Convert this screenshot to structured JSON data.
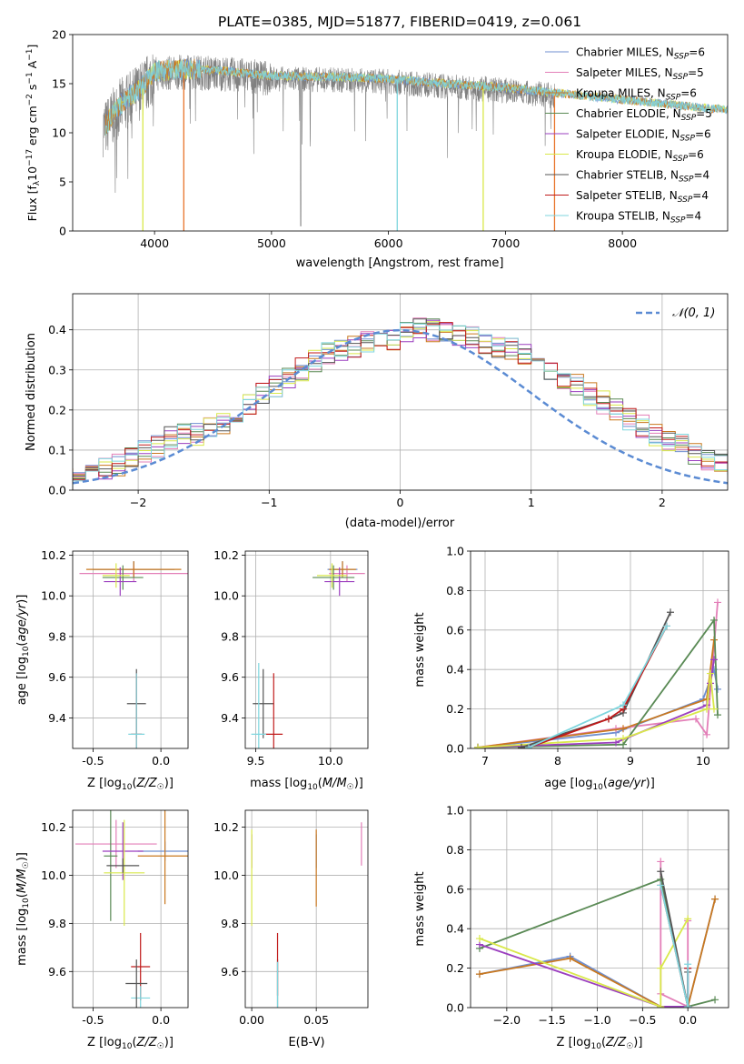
{
  "figure_title": "PLATE=0385, MJD=51877, FIBERID=0419, z=0.061",
  "colors": {
    "Chabrier MILES": "#6f8fd0",
    "Salpeter MILES": "#e37fb8",
    "Kroupa MILES": "#c9781f",
    "Chabrier ELODIE": "#5a8a55",
    "Salpeter ELODIE": "#9b3fbf",
    "Kroupa ELODIE": "#d9e84a",
    "Chabrier STELIB": "#555555",
    "Salpeter STELIB": "#c01a1a",
    "Kroupa STELIB": "#7fd6de",
    "data": "#808080",
    "orange": "#e8742a"
  },
  "chart_data": [
    {
      "type": "line",
      "name": "spectrum",
      "xlabel": "wavelength [Angstrom, rest frame]",
      "ylabel": "Flux [f_λ 10^-17 erg cm^-2 s^-1 A^-1]",
      "xlim": [
        3300,
        8900
      ],
      "ylim": [
        0,
        20
      ],
      "xticks": [
        4000,
        5000,
        6000,
        7000,
        8000
      ],
      "yticks": [
        0,
        5,
        10,
        15,
        20
      ],
      "legend": [
        {
          "name": "Chabrier MILES",
          "nssp": "6"
        },
        {
          "name": "Salpeter MILES",
          "nssp": "5"
        },
        {
          "name": "Kroupa MILES",
          "nssp": "6"
        },
        {
          "name": "Chabrier ELODIE",
          "nssp": "5"
        },
        {
          "name": "Salpeter ELODIE",
          "nssp": "6"
        },
        {
          "name": "Kroupa ELODIE",
          "nssp": "6"
        },
        {
          "name": "Chabrier STELIB",
          "nssp": "4"
        },
        {
          "name": "Salpeter STELIB",
          "nssp": "4"
        },
        {
          "name": "Kroupa STELIB",
          "nssp": "4"
        }
      ],
      "legend_position": "top-right",
      "continuum": [
        [
          3580,
          10.5
        ],
        [
          3700,
          12.5
        ],
        [
          3900,
          14.5
        ],
        [
          4000,
          16.0
        ],
        [
          4300,
          16.2
        ],
        [
          4600,
          16.0
        ],
        [
          5000,
          15.5
        ],
        [
          5500,
          15.4
        ],
        [
          6000,
          15.2
        ],
        [
          6500,
          14.7
        ],
        [
          7000,
          14.3
        ],
        [
          7400,
          13.8
        ]
      ],
      "data_range": [
        3560,
        7420
      ],
      "model_range": [
        3580,
        9200
      ]
    },
    {
      "type": "bar",
      "name": "residual-histogram",
      "xlabel": "(data-model)/error",
      "ylabel": "Normed distribution",
      "xlim": [
        -2.5,
        2.5
      ],
      "ylim": [
        0,
        0.49
      ],
      "xticks": [
        -2,
        -1,
        0,
        1,
        2
      ],
      "yticks": [
        0.0,
        0.1,
        0.2,
        0.3,
        0.4
      ],
      "bin_width": 0.1,
      "gaussian_label": "𝒩(0, 1)",
      "legend_position": "top-right",
      "base_values": [
        0.03,
        0.03,
        0.04,
        0.04,
        0.05,
        0.06,
        0.08,
        0.1,
        0.11,
        0.13,
        0.14,
        0.14,
        0.16,
        0.17,
        0.19,
        0.21,
        0.24,
        0.26,
        0.28,
        0.3,
        0.32,
        0.34,
        0.35,
        0.36,
        0.37,
        0.38,
        0.38,
        0.39,
        0.4,
        0.4,
        0.4,
        0.39,
        0.38,
        0.37,
        0.36,
        0.35,
        0.34,
        0.32,
        0.3,
        0.28,
        0.26,
        0.24,
        0.22,
        0.2,
        0.18,
        0.16,
        0.14,
        0.12,
        0.11,
        0.09,
        0.08,
        0.07,
        0.06,
        0.05
      ]
    },
    {
      "type": "scatter",
      "name": "age-vs-metallicity",
      "xlabel": "Z [log₁₀(Z/Z☉)]",
      "ylabel": "age  [log₁₀(age/yr)]",
      "xlim": [
        -0.65,
        0.2
      ],
      "ylim": [
        9.25,
        10.22
      ],
      "xticks": [
        -0.5,
        0.0
      ],
      "yticks": [
        9.4,
        9.6,
        9.8,
        10.0,
        10.2
      ],
      "points": [
        {
          "series": "Chabrier MILES",
          "x": -0.2,
          "y": 10.13,
          "xerr": 0.3,
          "yerr": 0.04
        },
        {
          "series": "Salpeter MILES",
          "x": -0.2,
          "y": 10.11,
          "xerr": 0.4,
          "yerr": 0.04
        },
        {
          "series": "Kroupa MILES",
          "x": -0.2,
          "y": 10.13,
          "xerr": 0.35,
          "yerr": 0.04
        },
        {
          "series": "Chabrier ELODIE",
          "x": -0.28,
          "y": 10.09,
          "xerr": 0.15,
          "yerr": 0.06
        },
        {
          "series": "Salpeter ELODIE",
          "x": -0.3,
          "y": 10.07,
          "xerr": 0.12,
          "yerr": 0.07
        },
        {
          "series": "Kroupa ELODIE",
          "x": -0.33,
          "y": 10.1,
          "xerr": 0.1,
          "yerr": 0.06
        },
        {
          "series": "Chabrier STELIB",
          "x": -0.18,
          "y": 9.47,
          "xerr": 0.07,
          "yerr": 0.17
        },
        {
          "series": "Salpeter STELIB",
          "x": -0.18,
          "y": 9.32,
          "xerr": 0.04,
          "yerr": 0.3
        },
        {
          "series": "Kroupa STELIB",
          "x": -0.18,
          "y": 9.32,
          "xerr": 0.06,
          "yerr": 0.3
        }
      ]
    },
    {
      "type": "scatter",
      "name": "age-vs-mass",
      "xlabel": "mass [log₁₀(M/M☉)]",
      "ylabel": "",
      "xlim": [
        9.43,
        10.25
      ],
      "ylim": [
        9.25,
        10.22
      ],
      "xticks": [
        9.5,
        10.0
      ],
      "yticks": [
        9.4,
        9.6,
        9.8,
        10.0,
        10.2
      ],
      "points": [
        {
          "series": "Chabrier MILES",
          "x": 10.08,
          "y": 10.13,
          "xerr": 0.1,
          "yerr": 0.04
        },
        {
          "series": "Salpeter MILES",
          "x": 10.11,
          "y": 10.11,
          "xerr": 0.12,
          "yerr": 0.04
        },
        {
          "series": "Kroupa MILES",
          "x": 10.08,
          "y": 10.13,
          "xerr": 0.09,
          "yerr": 0.04
        },
        {
          "series": "Chabrier ELODIE",
          "x": 10.02,
          "y": 10.09,
          "xerr": 0.14,
          "yerr": 0.06
        },
        {
          "series": "Salpeter ELODIE",
          "x": 10.06,
          "y": 10.07,
          "xerr": 0.1,
          "yerr": 0.07
        },
        {
          "series": "Kroupa ELODIE",
          "x": 10.01,
          "y": 10.1,
          "xerr": 0.1,
          "yerr": 0.06
        },
        {
          "series": "Chabrier STELIB",
          "x": 9.55,
          "y": 9.47,
          "xerr": 0.07,
          "yerr": 0.17
        },
        {
          "series": "Salpeter STELIB",
          "x": 9.62,
          "y": 9.32,
          "xerr": 0.06,
          "yerr": 0.3
        },
        {
          "series": "Kroupa STELIB",
          "x": 9.52,
          "y": 9.32,
          "xerr": 0.05,
          "yerr": 0.35
        }
      ]
    },
    {
      "type": "line",
      "name": "mass-weight-vs-age",
      "xlabel": "age  [log₁₀(age/yr)]",
      "ylabel": "mass weight",
      "xlim": [
        6.8,
        10.35
      ],
      "ylim": [
        0,
        1
      ],
      "xticks": [
        7,
        8,
        9,
        10
      ],
      "yticks": [
        0.0,
        0.2,
        0.4,
        0.6,
        0.8,
        1.0
      ],
      "series": [
        {
          "name": "Chabrier MILES",
          "points": [
            [
              6.9,
              0.005
            ],
            [
              8.8,
              0.08
            ],
            [
              10.0,
              0.25
            ],
            [
              10.15,
              0.4
            ],
            [
              10.2,
              0.3
            ]
          ]
        },
        {
          "name": "Salpeter MILES",
          "points": [
            [
              6.9,
              0.005
            ],
            [
              8.8,
              0.1
            ],
            [
              9.9,
              0.15
            ],
            [
              10.05,
              0.07
            ],
            [
              10.2,
              0.74
            ]
          ]
        },
        {
          "name": "Kroupa MILES",
          "points": [
            [
              6.9,
              0.005
            ],
            [
              8.9,
              0.1
            ],
            [
              10.05,
              0.25
            ],
            [
              10.15,
              0.55
            ]
          ]
        },
        {
          "name": "Chabrier ELODIE",
          "points": [
            [
              6.9,
              0.005
            ],
            [
              8.9,
              0.02
            ],
            [
              10.15,
              0.65
            ],
            [
              10.2,
              0.17
            ]
          ]
        },
        {
          "name": "Salpeter ELODIE",
          "points": [
            [
              6.9,
              0.005
            ],
            [
              8.8,
              0.03
            ],
            [
              10.05,
              0.22
            ],
            [
              10.1,
              0.33
            ],
            [
              10.15,
              0.45
            ]
          ]
        },
        {
          "name": "Kroupa ELODIE",
          "points": [
            [
              6.9,
              0.005
            ],
            [
              8.9,
              0.05
            ],
            [
              10.05,
              0.2
            ],
            [
              10.1,
              0.38
            ],
            [
              10.15,
              0.2
            ]
          ]
        },
        {
          "name": "Chabrier STELIB",
          "points": [
            [
              7.5,
              0.005
            ],
            [
              8.7,
              0.15
            ],
            [
              8.9,
              0.18
            ],
            [
              9.55,
              0.69
            ]
          ]
        },
        {
          "name": "Salpeter STELIB",
          "points": [
            [
              7.6,
              0.005
            ],
            [
              8.7,
              0.15
            ],
            [
              8.9,
              0.2
            ],
            [
              9.5,
              0.62
            ]
          ]
        },
        {
          "name": "Kroupa STELIB",
          "points": [
            [
              7.6,
              0.005
            ],
            [
              8.9,
              0.22
            ],
            [
              9.5,
              0.62
            ]
          ]
        }
      ]
    },
    {
      "type": "scatter",
      "name": "mass-vs-metallicity",
      "xlabel": "Z [log₁₀(Z/Z☉)]",
      "ylabel": "mass [log₁₀(M/M☉)]",
      "xlim": [
        -0.65,
        0.2
      ],
      "ylim": [
        9.45,
        10.27
      ],
      "xticks": [
        -0.5,
        0.0
      ],
      "yticks": [
        9.6,
        9.8,
        10.0,
        10.2
      ],
      "points": [
        {
          "series": "Chabrier MILES",
          "x": 0.03,
          "y": 10.1,
          "xerr": 0.2,
          "yerr": 0.04
        },
        {
          "series": "Salpeter MILES",
          "x": -0.33,
          "y": 10.13,
          "xerr": 0.3,
          "yerr": 0.1
        },
        {
          "series": "Kroupa MILES",
          "x": 0.03,
          "y": 10.08,
          "xerr": 0.2,
          "yerr": 0.2
        },
        {
          "series": "Chabrier ELODIE",
          "x": -0.37,
          "y": 10.08,
          "xerr": 0.05,
          "yerr": 0.27
        },
        {
          "series": "Salpeter ELODIE",
          "x": -0.28,
          "y": 10.1,
          "xerr": 0.15,
          "yerr": 0.12
        },
        {
          "series": "Kroupa ELODIE",
          "x": -0.27,
          "y": 10.01,
          "xerr": 0.15,
          "yerr": 0.22
        },
        {
          "series": "Chabrier STELIB",
          "x": -0.28,
          "y": 10.04,
          "xerr": 0.12,
          "yerr": 0.03
        },
        {
          "series": "Salpeter STELIB",
          "x": -0.15,
          "y": 9.62,
          "xerr": 0.07,
          "yerr": 0.14
        },
        {
          "series": "Kroupa STELIB",
          "x": -0.15,
          "y": 9.49,
          "xerr": 0.07,
          "yerr": 0.05
        },
        {
          "series": "Chabrier STELIB",
          "x": -0.18,
          "y": 9.55,
          "xerr": 0.08,
          "yerr": 0.1
        }
      ]
    },
    {
      "type": "scatter",
      "name": "mass-vs-extinction",
      "xlabel": "E(B-V)",
      "ylabel": "",
      "xlim": [
        -0.005,
        0.09
      ],
      "ylim": [
        9.45,
        10.27
      ],
      "xticks": [
        0.0,
        0.05
      ],
      "yticks": [
        9.6,
        9.8,
        10.0,
        10.2
      ],
      "points": [
        {
          "series": "Chabrier MILES",
          "x": 0.05,
          "y": 10.1,
          "xerr": 0,
          "yerr": 0.07
        },
        {
          "series": "Salpeter MILES",
          "x": 0.085,
          "y": 10.13,
          "xerr": 0,
          "yerr": 0.09
        },
        {
          "series": "Kroupa MILES",
          "x": 0.05,
          "y": 10.03,
          "xerr": 0,
          "yerr": 0.16
        },
        {
          "series": "Salpeter ELODIE",
          "x": 0.0,
          "y": 10.1,
          "xerr": 0,
          "yerr": 0.07
        },
        {
          "series": "Kroupa ELODIE",
          "x": 0.0,
          "y": 9.99,
          "xerr": 0,
          "yerr": 0.2
        },
        {
          "series": "Chabrier STELIB",
          "x": 0.02,
          "y": 9.55,
          "xerr": 0,
          "yerr": 0.1
        },
        {
          "series": "Salpeter STELIB",
          "x": 0.02,
          "y": 9.63,
          "xerr": 0,
          "yerr": 0.13
        },
        {
          "series": "Kroupa STELIB",
          "x": 0.02,
          "y": 9.52,
          "xerr": 0,
          "yerr": 0.12
        }
      ]
    },
    {
      "type": "line",
      "name": "mass-weight-vs-metallicity",
      "xlabel": "Z [log₁₀(Z/Z☉)]",
      "ylabel": "mass weight",
      "xlim": [
        -2.4,
        0.45
      ],
      "ylim": [
        0,
        1
      ],
      "xticks": [
        -2.0,
        -1.5,
        -1.0,
        -0.5,
        0.0
      ],
      "yticks": [
        0.0,
        0.2,
        0.4,
        0.6,
        0.8,
        1.0
      ],
      "series": [
        {
          "name": "Chabrier MILES",
          "points": [
            [
              -2.3,
              0.17
            ],
            [
              -1.3,
              0.26
            ],
            [
              -0.3,
              0.005
            ],
            [
              0.0,
              0.005
            ],
            [
              0.3,
              0.55
            ]
          ]
        },
        {
          "name": "Salpeter MILES",
          "points": [
            [
              -0.3,
              0.74
            ],
            [
              -0.3,
              0.07
            ],
            [
              0.0,
              0.005
            ],
            [
              0.0,
              0.44
            ]
          ]
        },
        {
          "name": "Kroupa MILES",
          "points": [
            [
              -2.3,
              0.17
            ],
            [
              -1.3,
              0.25
            ],
            [
              -0.3,
              0.005
            ],
            [
              0.0,
              0.005
            ],
            [
              0.3,
              0.55
            ]
          ]
        },
        {
          "name": "Chabrier ELODIE",
          "points": [
            [
              -2.3,
              0.3
            ],
            [
              -0.3,
              0.65
            ],
            [
              0.0,
              0.005
            ],
            [
              0.3,
              0.04
            ]
          ]
        },
        {
          "name": "Salpeter ELODIE",
          "points": [
            [
              -2.3,
              0.32
            ],
            [
              -0.3,
              0.005
            ],
            [
              0.0,
              0.005
            ],
            [
              0.0,
              0.2
            ]
          ]
        },
        {
          "name": "Kroupa ELODIE",
          "points": [
            [
              -2.3,
              0.35
            ],
            [
              -0.3,
              0.005
            ],
            [
              -0.3,
              0.2
            ],
            [
              0.0,
              0.45
            ]
          ]
        },
        {
          "name": "Chabrier STELIB",
          "points": [
            [
              -0.3,
              0.69
            ],
            [
              0.0,
              0.005
            ],
            [
              0.0,
              0.18
            ]
          ]
        },
        {
          "name": "Salpeter STELIB",
          "points": [
            [
              -0.3,
              0.62
            ],
            [
              0.0,
              0.005
            ],
            [
              0.0,
              0.2
            ]
          ]
        },
        {
          "name": "Kroupa STELIB",
          "points": [
            [
              -0.3,
              0.62
            ],
            [
              0.0,
              0.005
            ],
            [
              0.0,
              0.22
            ]
          ]
        }
      ]
    }
  ]
}
